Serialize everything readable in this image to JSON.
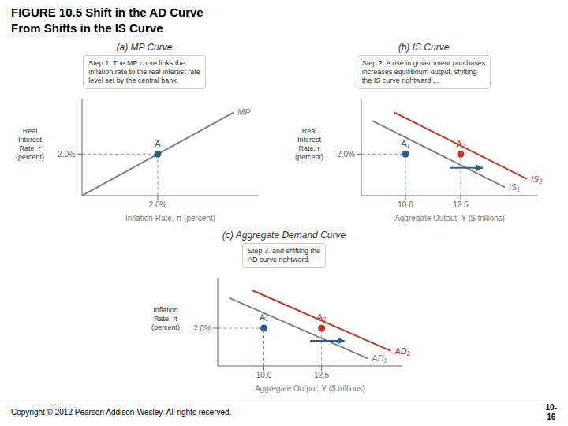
{
  "title": "FIGURE 10.5  Shift in the AD Curve\nFrom Shifts in the IS Curve",
  "annotations": [
    "Copyright © 2012 Pearson Addison-Wesley. All rights reserved.",
    "10-\n16"
  ],
  "chart_data": [
    {
      "type": "line",
      "title": "(a) MP Curve",
      "x_label": "Inflation Rate, π (percent)",
      "y_label": "Real\nInterest\nRate, r\n(percent)",
      "xlim": [
        0.5,
        4.0
      ],
      "ylim": [
        0.5,
        4.0
      ],
      "xticks": [
        {
          "value": 2.0,
          "label": "2.0%"
        }
      ],
      "yticks": [
        {
          "value": 2.0,
          "label": "2.0%"
        }
      ],
      "grid": false,
      "annotations": [
        "Step 1. The MP curve links the\ninflation rate to the real interest rate\nlevel set by the central bank."
      ],
      "series": [
        {
          "name": "MP",
          "type": "line",
          "color": "#808080",
          "x": [
            0.5,
            3.5
          ],
          "values": [
            0.5,
            3.5
          ]
        },
        {
          "name": "A",
          "type": "scatter",
          "color": "#2c5f8a",
          "x": [
            2.0
          ],
          "values": [
            2.0
          ]
        }
      ]
    },
    {
      "type": "line",
      "title": "(b) IS Curve",
      "x_label": "Aggregate Output, Y ($ trillions)",
      "y_label": "Real\nInterest\nRate, r\n(percent)",
      "xlim": [
        8.0,
        16.0
      ],
      "ylim": [
        0.5,
        4.0
      ],
      "xticks": [
        {
          "value": 10.0,
          "label": "10.0"
        },
        12.5
      ],
      "yticks": [
        {
          "value": 2.0,
          "label": "2.0%"
        }
      ],
      "grid": false,
      "annotations": [
        "Step 2. A rise in government purchases\nincreases equilibrium output, shifting\nthe IS curve rightward...."
      ],
      "series": [
        {
          "name": "IS₁",
          "type": "line",
          "color": "#808080",
          "x": [
            8.5,
            14.5
          ],
          "values": [
            3.2,
            0.8
          ]
        },
        {
          "name": "IS₂",
          "type": "line",
          "color": "#c0392b",
          "x": [
            9.5,
            15.5
          ],
          "values": [
            3.5,
            1.1
          ]
        },
        {
          "name": "A₁",
          "type": "scatter",
          "color": "#2c5f8a",
          "x": [
            10.0
          ],
          "values": [
            2.0
          ]
        },
        {
          "name": "A₂",
          "type": "scatter",
          "color": "#c0392b",
          "x": [
            12.5
          ],
          "values": [
            2.0
          ]
        },
        {
          "type": "arrow",
          "color": "#2c5f8a",
          "x": [
            12.0,
            13.5
          ],
          "values": [
            1.5,
            1.5
          ]
        }
      ]
    },
    {
      "type": "line",
      "title": "(c) Aggregate Demand Curve",
      "x_label": "Aggregate Output, Y ($ trillions)",
      "y_label": "Inflation\nRate, π\n(percent)",
      "xlim": [
        8.0,
        16.0
      ],
      "ylim": [
        0.5,
        4.0
      ],
      "xticks": [
        {
          "value": 10.0,
          "label": "10.0"
        },
        12.5
      ],
      "yticks": [
        {
          "value": 2.0,
          "label": "2.0%"
        }
      ],
      "grid": false,
      "annotations": [
        "Step 3. and shifting the\nAD curve rightward."
      ],
      "series": [
        {
          "name": "AD₁",
          "type": "line",
          "color": "#808080",
          "x": [
            8.5,
            14.5
          ],
          "values": [
            3.2,
            0.8
          ]
        },
        {
          "name": "AD₂",
          "type": "line",
          "color": "#c0392b",
          "x": [
            9.5,
            15.5
          ],
          "values": [
            3.5,
            1.1
          ]
        },
        {
          "name": "A₁",
          "type": "scatter",
          "color": "#2c5f8a",
          "x": [
            10.0
          ],
          "values": [
            2.0
          ]
        },
        {
          "name": "A₂",
          "type": "scatter",
          "color": "#c0392b",
          "x": [
            12.5
          ],
          "values": [
            2.0
          ]
        },
        {
          "type": "arrow",
          "color": "#2c5f8a",
          "x": [
            12.0,
            13.5
          ],
          "values": [
            1.5,
            1.5
          ]
        }
      ]
    }
  ]
}
